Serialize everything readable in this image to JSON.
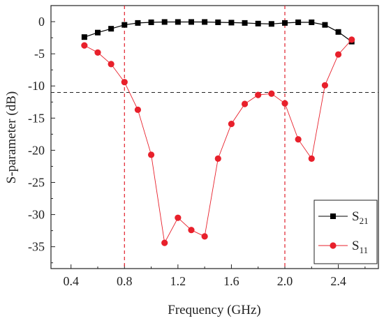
{
  "chart_data": {
    "type": "line",
    "title": "",
    "xlabel": "Frequency (GHz)",
    "ylabel": "S-parameter (dB)",
    "xlim": [
      0.25,
      2.7
    ],
    "ylim": [
      -38.4,
      2.5
    ],
    "xticks": [
      0.4,
      0.8,
      1.2,
      1.6,
      2.0,
      2.4
    ],
    "xtick_labels": [
      "0.4",
      "0.8",
      "1.2",
      "1.6",
      "2.0",
      "2.4"
    ],
    "yticks": [
      0,
      -5,
      -10,
      -15,
      -20,
      -25,
      -30,
      -35
    ],
    "ytick_labels": [
      "0",
      "-5",
      "-10",
      "-15",
      "-20",
      "-25",
      "-30",
      "-35"
    ],
    "grid": false,
    "legend_position": "bottom-right",
    "reference_lines": [
      {
        "orientation": "vertical",
        "value": 0.8,
        "color": "#e0202b",
        "style": "dashed"
      },
      {
        "orientation": "vertical",
        "value": 2.0,
        "color": "#e0202b",
        "style": "dashed"
      },
      {
        "orientation": "horizontal",
        "value": -11,
        "color": "#222222",
        "style": "dashed"
      }
    ],
    "series": [
      {
        "name": "S21",
        "legend_main": "S",
        "legend_sub": "21",
        "color": "#000000",
        "marker": "square",
        "x": [
          0.5,
          0.6,
          0.7,
          0.8,
          0.9,
          1.0,
          1.1,
          1.2,
          1.3,
          1.4,
          1.5,
          1.6,
          1.7,
          1.8,
          1.9,
          2.0,
          2.1,
          2.2,
          2.3,
          2.4,
          2.5
        ],
        "y": [
          -2.4,
          -1.7,
          -1.1,
          -0.5,
          -0.2,
          -0.1,
          -0.05,
          -0.05,
          -0.05,
          -0.05,
          -0.1,
          -0.15,
          -0.2,
          -0.3,
          -0.35,
          -0.2,
          -0.1,
          -0.1,
          -0.5,
          -1.6,
          -3.1
        ]
      },
      {
        "name": "S11",
        "legend_main": "S",
        "legend_sub": "11",
        "color": "#e8202b",
        "marker": "circle",
        "x": [
          0.5,
          0.6,
          0.7,
          0.8,
          0.9,
          1.0,
          1.1,
          1.2,
          1.3,
          1.4,
          1.5,
          1.6,
          1.7,
          1.8,
          1.9,
          2.0,
          2.1,
          2.2,
          2.3,
          2.4,
          2.5
        ],
        "y": [
          -3.7,
          -4.8,
          -6.6,
          -9.4,
          -13.7,
          -20.7,
          -34.4,
          -30.5,
          -32.4,
          -33.4,
          -21.3,
          -15.9,
          -12.8,
          -11.4,
          -11.2,
          -12.7,
          -18.3,
          -21.3,
          -9.9,
          -5.1,
          -2.8
        ]
      }
    ]
  }
}
